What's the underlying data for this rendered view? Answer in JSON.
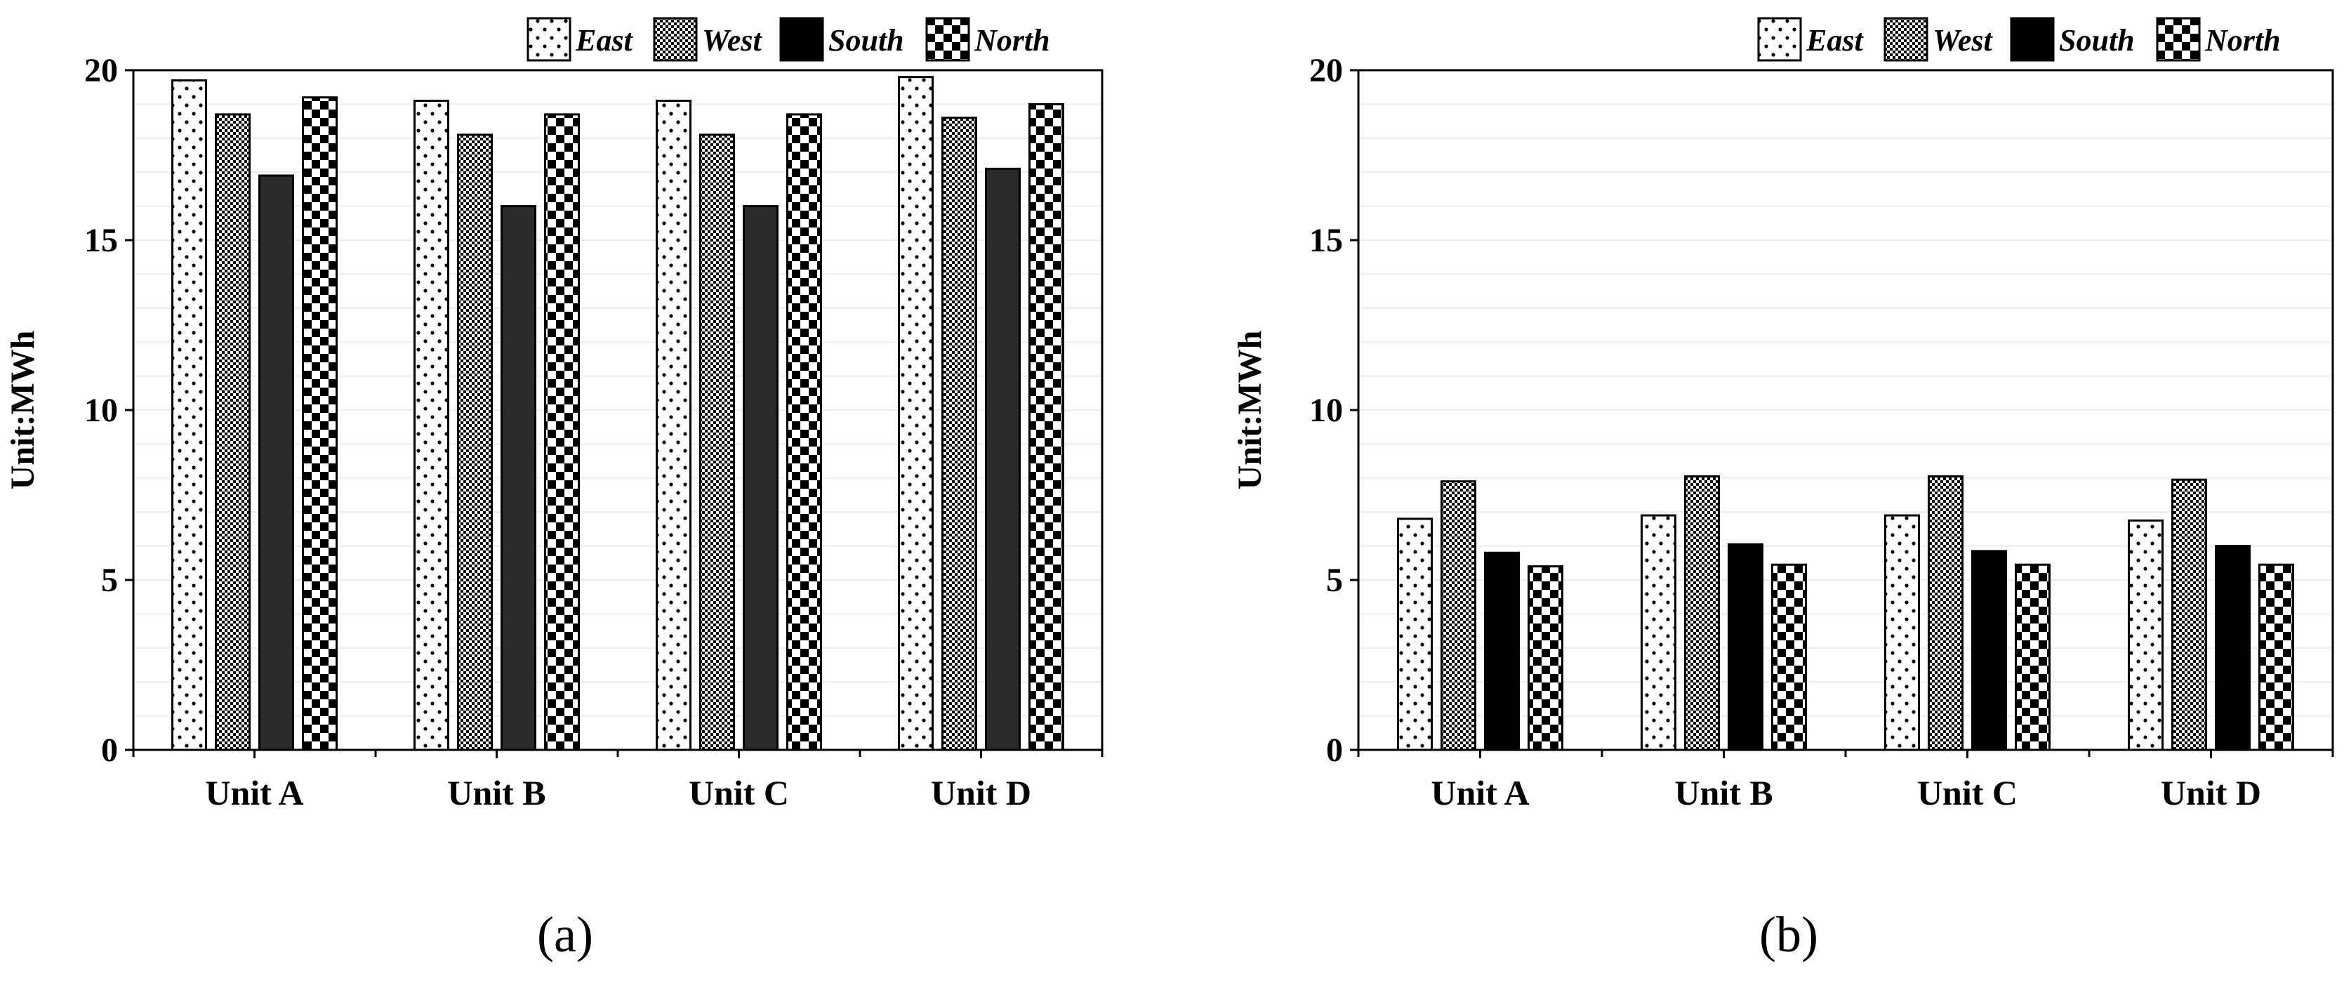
{
  "chart_data": [
    {
      "type": "bar",
      "panel_label": "(a)",
      "categories": [
        "Unit A",
        "Unit B",
        "Unit C",
        "Unit D"
      ],
      "series": [
        {
          "name": "East",
          "pattern": "dots",
          "values": [
            19.7,
            19.1,
            19.1,
            19.8
          ]
        },
        {
          "name": "West",
          "pattern": "checker",
          "values": [
            18.7,
            18.1,
            18.1,
            18.6
          ]
        },
        {
          "name": "South",
          "pattern": "solid",
          "values": [
            16.9,
            16.0,
            16.0,
            17.1
          ]
        },
        {
          "name": "North",
          "pattern": "bigcheck",
          "values": [
            19.2,
            18.7,
            18.7,
            19.0
          ]
        }
      ],
      "title": "",
      "xlabel": "",
      "ylabel": "Unit:MWh",
      "ylim": [
        0,
        20
      ],
      "yticks": [
        0,
        5,
        10,
        15,
        20
      ],
      "tick_labels": [
        "0",
        "5",
        "10",
        "15",
        "20"
      ],
      "legend_position": "top-right"
    },
    {
      "type": "bar",
      "panel_label": "(b)",
      "categories": [
        "Unit A",
        "Unit B",
        "Unit C",
        "Unit D"
      ],
      "series": [
        {
          "name": "East",
          "pattern": "dots",
          "values": [
            6.8,
            6.9,
            6.9,
            6.75
          ]
        },
        {
          "name": "West",
          "pattern": "checker",
          "values": [
            7.9,
            8.05,
            8.05,
            7.95
          ]
        },
        {
          "name": "South",
          "pattern": "solid",
          "values": [
            5.8,
            6.05,
            5.85,
            6.0
          ]
        },
        {
          "name": "North",
          "pattern": "bigcheck",
          "values": [
            5.4,
            5.45,
            5.45,
            5.45
          ]
        }
      ],
      "title": "",
      "xlabel": "",
      "ylabel": "Unit:MWh",
      "ylim": [
        0,
        20
      ],
      "yticks": [
        0,
        5,
        10,
        15,
        20
      ],
      "tick_labels": [
        "0",
        "5",
        "10",
        "15",
        "20"
      ],
      "legend_position": "top-right"
    }
  ],
  "colors": {
    "south_fill_a": "#2a2a2a",
    "south_fill_b": "#000000",
    "grid": "#ececec"
  }
}
